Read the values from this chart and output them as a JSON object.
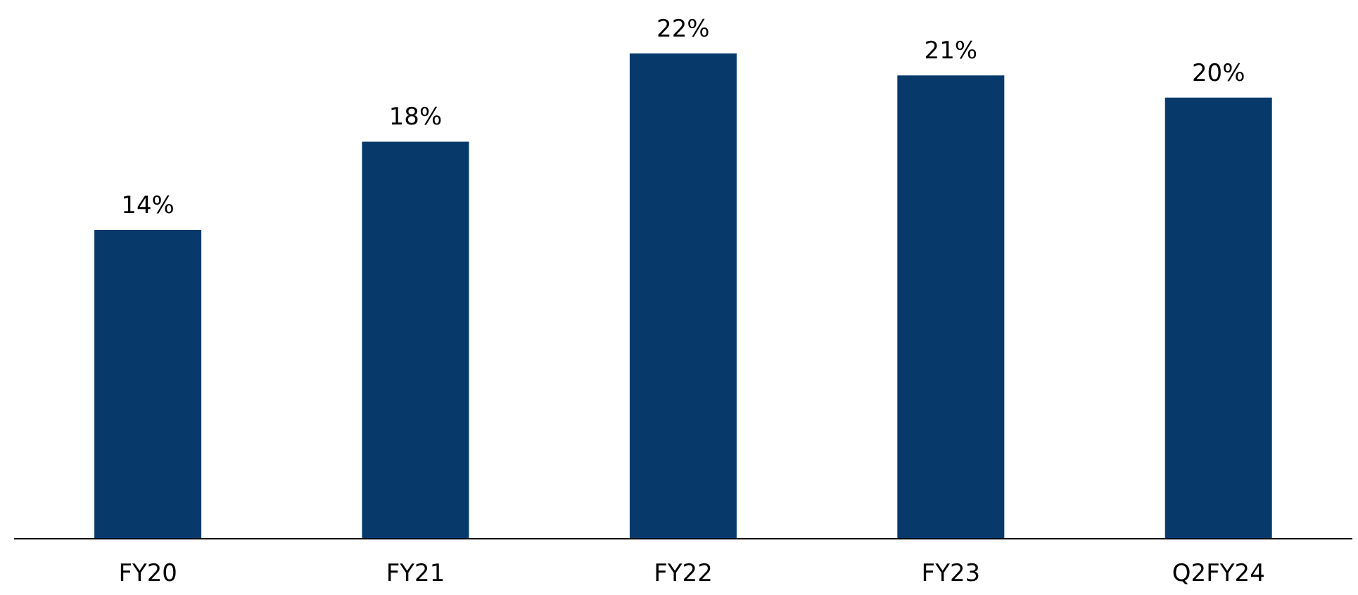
{
  "chart_data": {
    "type": "bar",
    "categories": [
      "FY20",
      "FY21",
      "FY22",
      "FY23",
      "Q2FY24"
    ],
    "values": [
      14,
      18,
      22,
      21,
      20
    ],
    "color": "#073a6b",
    "data_labels": true,
    "value_labels": [
      "14%",
      "18%",
      "22%",
      "21%",
      "20%"
    ],
    "tick_labels": "x"
  }
}
